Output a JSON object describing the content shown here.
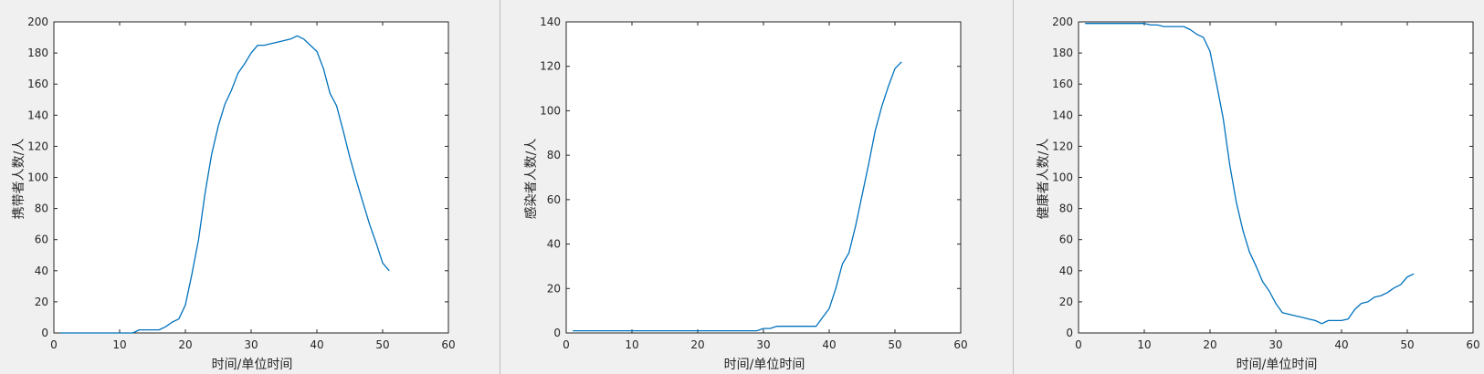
{
  "panels": [
    {
      "xlabel": "时间/单位时间",
      "ylabel": "携带者人数/人"
    },
    {
      "xlabel": "时间/单位时间",
      "ylabel": "感染者人数/人"
    },
    {
      "xlabel": "时间/单位时间",
      "ylabel": "健康者人数/人"
    }
  ],
  "chart_data": [
    {
      "type": "line",
      "title": "",
      "xlabel": "时间/单位时间",
      "ylabel": "携带者人数/人",
      "xlim": [
        0,
        60
      ],
      "ylim": [
        0,
        200
      ],
      "xticks": [
        0,
        10,
        20,
        30,
        40,
        50,
        60
      ],
      "yticks": [
        0,
        20,
        40,
        60,
        80,
        100,
        120,
        140,
        160,
        180,
        200
      ],
      "grid": false,
      "color": "#0072bd",
      "x": [
        1,
        2,
        3,
        4,
        5,
        6,
        7,
        8,
        9,
        10,
        11,
        12,
        13,
        14,
        15,
        16,
        17,
        18,
        19,
        20,
        21,
        22,
        23,
        24,
        25,
        26,
        27,
        28,
        29,
        30,
        31,
        32,
        33,
        34,
        35,
        36,
        37,
        38,
        39,
        40,
        41,
        42,
        43,
        44,
        45,
        46,
        47,
        48,
        49,
        50,
        51
      ],
      "y": [
        0,
        0,
        0,
        0,
        0,
        0,
        0,
        0,
        0,
        0,
        0,
        0,
        2,
        2,
        2,
        2,
        4,
        7,
        9,
        18,
        38,
        60,
        90,
        115,
        133,
        147,
        156,
        167,
        173,
        180,
        185,
        185,
        186,
        187,
        188,
        189,
        191,
        189,
        185,
        181,
        170,
        154,
        146,
        130,
        113,
        98,
        84,
        70,
        58,
        45,
        40
      ]
    },
    {
      "type": "line",
      "title": "",
      "xlabel": "时间/单位时间",
      "ylabel": "感染者人数/人",
      "xlim": [
        0,
        60
      ],
      "ylim": [
        0,
        140
      ],
      "xticks": [
        0,
        10,
        20,
        30,
        40,
        50,
        60
      ],
      "yticks": [
        0,
        20,
        40,
        60,
        80,
        100,
        120,
        140
      ],
      "grid": false,
      "color": "#0072bd",
      "x": [
        1,
        2,
        3,
        4,
        5,
        6,
        7,
        8,
        9,
        10,
        11,
        12,
        13,
        14,
        15,
        16,
        17,
        18,
        19,
        20,
        21,
        22,
        23,
        24,
        25,
        26,
        27,
        28,
        29,
        30,
        31,
        32,
        33,
        34,
        35,
        36,
        37,
        38,
        39,
        40,
        41,
        42,
        43,
        44,
        45,
        46,
        47,
        48,
        49,
        50,
        51
      ],
      "y": [
        1,
        1,
        1,
        1,
        1,
        1,
        1,
        1,
        1,
        1,
        1,
        1,
        1,
        1,
        1,
        1,
        1,
        1,
        1,
        1,
        1,
        1,
        1,
        1,
        1,
        1,
        1,
        1,
        1,
        2,
        2,
        3,
        3,
        3,
        3,
        3,
        3,
        3,
        7,
        11,
        20,
        31,
        36,
        48,
        62,
        76,
        91,
        102,
        111,
        119,
        122
      ]
    },
    {
      "type": "line",
      "title": "",
      "xlabel": "时间/单位时间",
      "ylabel": "健康者人数/人",
      "xlim": [
        0,
        60
      ],
      "ylim": [
        0,
        200
      ],
      "xticks": [
        0,
        10,
        20,
        30,
        40,
        50,
        60
      ],
      "yticks": [
        0,
        20,
        40,
        60,
        80,
        100,
        120,
        140,
        160,
        180,
        200
      ],
      "grid": false,
      "color": "#0072bd",
      "x": [
        1,
        2,
        3,
        4,
        5,
        6,
        7,
        8,
        9,
        10,
        11,
        12,
        13,
        14,
        15,
        16,
        17,
        18,
        19,
        20,
        21,
        22,
        23,
        24,
        25,
        26,
        27,
        28,
        29,
        30,
        31,
        32,
        33,
        34,
        35,
        36,
        37,
        38,
        39,
        40,
        41,
        42,
        43,
        44,
        45,
        46,
        47,
        48,
        49,
        50,
        51
      ],
      "y": [
        199,
        199,
        199,
        199,
        199,
        199,
        199,
        199,
        199,
        199,
        198,
        198,
        197,
        197,
        197,
        197,
        195,
        192,
        190,
        181,
        160,
        138,
        108,
        84,
        66,
        52,
        43,
        33,
        27,
        19,
        13,
        12,
        11,
        10,
        9,
        8,
        6,
        8,
        8,
        8,
        9,
        15,
        19,
        20,
        23,
        24,
        26,
        29,
        31,
        36,
        38
      ]
    }
  ]
}
